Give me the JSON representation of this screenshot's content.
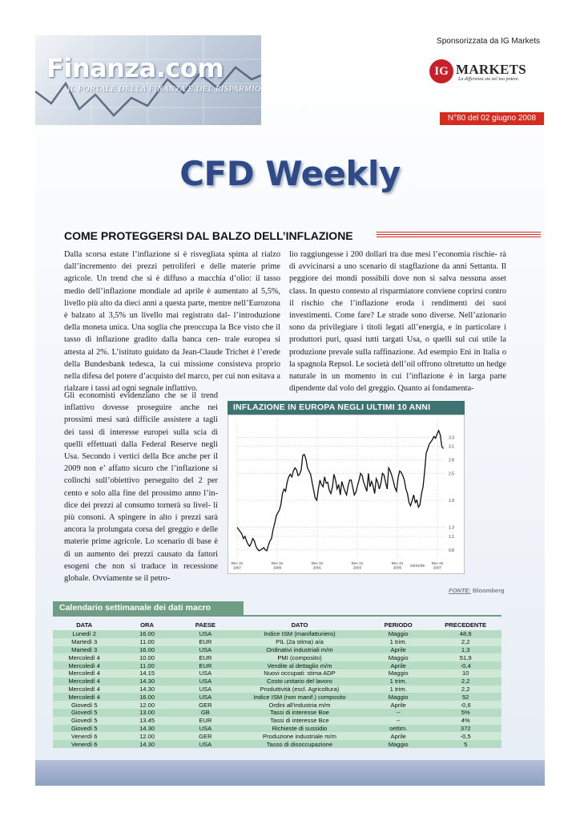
{
  "header": {
    "logo_text": "Finanza.com",
    "logo_subtitle": "IL PORTALE DELLA FINANZA E DEL RISPARMIO",
    "sponsor": "Sponsorizzata da IG Markets",
    "ig_mark": "IG",
    "ig_name": "MARKETS",
    "ig_tagline": "La differenza sta nel tuo potere.",
    "issue": "N°80 del 02 giugno 2008"
  },
  "title": "CFD Weekly",
  "article": {
    "headline": "COME PROTEGGERSI DAL BALZO DELL’INFLAZIONE",
    "col1_top": "Dalla scorsa estate l’inflazione si è risvegliata spinta al rialzo dall’incremento dei prezzi petroliferi e delle materie prime agricole. Un trend che si è diffuso a macchia d’olio: il tasso medio dell’inflazione mondiale ad aprile è aumentato al 5,5%, livello più alto da dieci anni a questa parte, mentre nell’Eurozona è balzato al 3,5% un livello mai registrato dal- l’introduzione della moneta unica. Una soglia che preoccupa la Bce visto che il tasso di inflazione gradito dalla banca cen- trale europea si attesta al 2%. L’istituto guidato da Jean-Claude Trichet è l’erede della Bundesbank tedesca, la cui missione consisteva proprio nella difesa del potere d’acquisto del marco, per cui non esitava a rialzare i tassi ad ogni segnale inflattivo.",
    "col1_bottom": "Gli economisti evidenziano che se il trend inflattivo dovesse proseguire anche nei prossimi mesi sarà difficile assistere a tagli dei tassi di interesse europei sulla scia di quelli effettuati dalla Federal Reserve negli Usa. Secondo i vertici della Bce anche per il 2009 non e’ affatto sicuro che l’inflazione si collochi sull’obiettivo perseguito del 2 per cento e solo alla fine del prossimo anno l’in- dice dei prezzi al consumo tornerà su livel- li più consoni.  A spingere in alto i prezzi sarà ancora la prolungata corsa del greggio e delle materie prime agricole. Lo scenario di base è di un aumento dei prezzi causato da fattori esogeni che non si traduce in recessione globale. Ovviamente se il petro-",
    "col2": "lio raggiungesse i 200 dollari tra due mesi l’economia rischie- rà di avvicinarsi a uno scenario di stagflazione da anni Settanta. Il peggiore dei mondi possibili dove non si salva nessuna asset class. In questo contesto al risparmiatore conviene coprirsi contro il rischio che l’inflazione eroda i rendimenti dei suoi investimenti. Come fare? Le strade sono diverse. Nell’azionario sono da privilegiare i titoli legati all’energia, e in particolare i produttori puri, quasi tutti targati Usa, o quelli sul cui utile la produzione prevale sulla raffinazione. Ad esempio Eni in Italia o la spagnola Repsol. Le società dell’oil offrono oltretutto un hedge naturale in un momento in cui l’inflazione è in larga parte dipendente dal volo del greggio. Quanto ai fondamenta-"
  },
  "chart": {
    "header": "INFLAZIONE IN EUROPA NEGLI ULTIMI 10 ANNI",
    "source_label": "FONTE:",
    "source_name": "Bloomberg"
  },
  "chart_data": {
    "type": "line",
    "title": "INFLAZIONE IN EUROPA NEGLI ULTIMI 10 ANNI",
    "xlabel": "",
    "ylabel": "",
    "ylim": [
      0.6,
      3.7
    ],
    "yticks": [
      3.3,
      3.1,
      2.8,
      2.5,
      1.9,
      1.3,
      1.1,
      0.8
    ],
    "xticks": [
      "Dec 31\n1997",
      "Dec 31\n1999",
      "Dec 31\n2001",
      "Dec 31\n2003",
      "Dec 31\n2005",
      "Dec 31\n2007"
    ],
    "x_extra_label": "03/31/08",
    "x_start": 1998.0,
    "x_end": 2008.4,
    "grid": true,
    "series": [
      {
        "values": [
          1.3,
          1.25,
          1.2,
          1.15,
          1.05,
          1.1,
          1.0,
          0.92,
          0.88,
          0.95,
          1.05,
          1.0,
          0.88,
          0.82,
          0.78,
          0.8,
          0.82,
          0.85,
          0.8,
          0.78,
          0.9,
          1.0,
          1.05,
          1.25,
          1.38,
          1.55,
          1.62,
          1.68,
          1.8,
          2.05,
          2.15,
          2.1,
          2.3,
          2.42,
          2.48,
          2.42,
          2.55,
          2.62,
          2.58,
          2.45,
          2.48,
          2.58,
          2.9,
          2.92,
          2.82,
          2.62,
          2.55,
          2.48,
          2.3,
          2.12,
          1.95,
          1.9,
          2.15,
          2.35,
          2.25,
          2.2,
          2.42,
          2.28,
          2.3,
          2.12,
          2.05,
          2.2,
          2.48,
          2.35,
          2.15,
          2.25,
          2.02,
          2.32,
          2.2,
          2.1,
          2.02,
          2.22,
          2.35,
          2.35,
          2.18,
          2.02,
          2.08,
          2.22,
          2.35,
          2.5,
          2.45,
          2.3,
          2.2,
          2.1,
          2.5,
          2.2,
          2.32,
          2.22,
          2.05,
          2.38,
          2.3,
          2.15,
          2.28,
          2.5,
          2.46,
          2.3,
          2.15,
          2.62,
          2.55,
          2.45,
          2.32,
          2.18,
          2.1,
          2.4,
          2.55,
          2.52,
          2.45,
          2.35,
          2.15,
          2.05,
          1.85,
          1.78,
          1.9,
          2.02,
          1.85,
          1.9,
          1.75,
          1.8,
          2.05,
          2.2,
          2.55,
          2.95,
          3.05,
          3.15,
          3.2,
          3.25,
          3.32,
          3.28,
          3.38,
          3.45,
          3.35,
          3.1,
          3.05
        ]
      }
    ]
  },
  "calendar": {
    "title": "Calendario settimanale dei dati macro",
    "columns": [
      "DATA",
      "ORA",
      "PAESE",
      "DATO",
      "PERIODO",
      "PRECEDENTE"
    ],
    "rows": [
      [
        "Lunedì 2",
        "16.00",
        "USA",
        "Indice ISM (manifatturiero)",
        "Maggio",
        "48,6"
      ],
      [
        "Martedì 3",
        "11.00",
        "EUR",
        "PIL (2a stima) a/a",
        "1 trim.",
        "2,2"
      ],
      [
        "Martedì 3",
        "16.00",
        "USA",
        "Ordinativi industriali m/m",
        "Aprile",
        "1,3"
      ],
      [
        "Mercoledì 4",
        "10.00",
        "EUR",
        "PMI (composito)",
        "Maggio",
        "51,9"
      ],
      [
        "Mercoledì 4",
        "11.00",
        "EUR",
        "Vendite al dettaglio m/m",
        "Aprile",
        "-0,4"
      ],
      [
        "Mercoledì 4",
        "14.15",
        "USA",
        "Nuovi occupati: stima ADP",
        "Maggio",
        "10"
      ],
      [
        "Mercoledì 4",
        "14.30",
        "USA",
        "Costo unitario del lavoro",
        "1 trim.",
        "2,2"
      ],
      [
        "Mercoledì 4",
        "14.30",
        "USA",
        "Produttività (escl. Agricoltura)",
        "1 trim.",
        "2,2"
      ],
      [
        "Mercoledì 4",
        "16.00",
        "USA",
        "Indice ISM (non manif.) composito",
        "Maggio",
        "52"
      ],
      [
        "Giovedì 5",
        "12.00",
        "GER",
        "Ordini all'industria m/m",
        "Aprile",
        "-0,6"
      ],
      [
        "Giovedì 5",
        "13.00",
        "GB",
        "Tassi di interesse Boe",
        "--",
        "5%"
      ],
      [
        "Giovedì 5",
        "13.45",
        "EUR",
        "Tassi di interesse Bce",
        "--",
        "4%"
      ],
      [
        "Giovedì 5",
        "14.30",
        "USA",
        "Richieste di sussidio",
        "settim.",
        "372"
      ],
      [
        "Venerdì 6",
        "12.00",
        "GER",
        "Produzione industriale m/m",
        "Aprile",
        "-0,5"
      ],
      [
        "Venerdì 6",
        "14.30",
        "USA",
        "Tasso di disoccupazione",
        "Maggio",
        "5"
      ]
    ]
  },
  "colors": {
    "title": "#2f4a88",
    "issue_badge": "#d62b1f",
    "chart_header": "#3d7370",
    "calendar_header": "#6f9e84",
    "row_odd": "#b6dcc4",
    "row_even": "#cfe9d9"
  }
}
